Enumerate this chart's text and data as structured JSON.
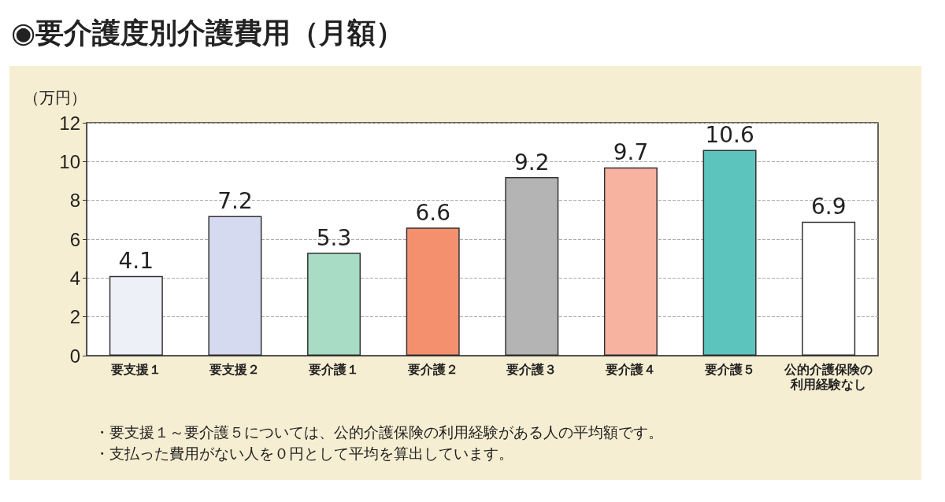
{
  "chart_data": {
    "type": "bar",
    "title": "◉要介護度別介護費用（月額）",
    "ylabel": "（万円）",
    "categories": [
      "要支援１",
      "要支援２",
      "要介護１",
      "要介護２",
      "要介護３",
      "要介護４",
      "要介護５",
      "公的介護保険の利用経験なし"
    ],
    "values": [
      4.1,
      7.2,
      5.3,
      6.6,
      9.2,
      9.7,
      10.6,
      6.9
    ],
    "colors": [
      "#eef0f8",
      "#d5daf0",
      "#a8dcc4",
      "#f5906e",
      "#b4b4b4",
      "#f8b2a0",
      "#5cc4bc",
      "#ffffff"
    ],
    "ylim": [
      0,
      12
    ],
    "yticks": [
      0,
      2,
      4,
      6,
      8,
      10,
      12
    ],
    "grid": "y",
    "data_labels": true,
    "annotations": [
      "・要支援１～要介護５については、公的介護保険の利用経験がある人の平均額です。",
      "・支払った費用がない人を０円として平均を算出しています。"
    ]
  }
}
